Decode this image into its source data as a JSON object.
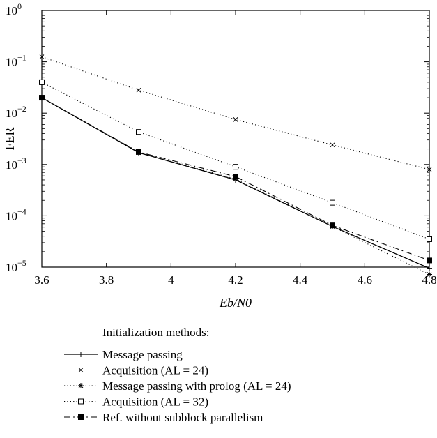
{
  "chart_data": {
    "type": "line",
    "xlabel": "Eb/N0",
    "ylabel": "FER",
    "xlim": [
      3.6,
      4.8
    ],
    "ylim": [
      1e-05,
      1
    ],
    "yscale": "log",
    "x_ticks": [
      "3.6",
      "3.8",
      "4",
      "4.2",
      "4.4",
      "4.6",
      "4.8"
    ],
    "y_ticks": [
      {
        "base": "10",
        "exp": "0"
      },
      {
        "base": "10",
        "exp": "−1"
      },
      {
        "base": "10",
        "exp": "−2"
      },
      {
        "base": "10",
        "exp": "−3"
      },
      {
        "base": "10",
        "exp": "−4"
      },
      {
        "base": "10",
        "exp": "−5"
      }
    ],
    "grid": false,
    "legend_title": "Initialization methods:",
    "legend_position": "below",
    "x": [
      3.6,
      3.9,
      4.2,
      4.5,
      4.8
    ],
    "series": [
      {
        "name": "Message passing",
        "line": "solid",
        "marker": "plus",
        "values": [
          0.02,
          0.0017,
          0.0005,
          6.2e-05,
          9.5e-06
        ]
      },
      {
        "name": "Acquisition (AL = 24)",
        "line": "dotted",
        "marker": "x",
        "values": [
          0.125,
          0.028,
          0.0075,
          0.0024,
          0.0008
        ]
      },
      {
        "name": "Message passing with prolog (AL = 24)",
        "line": "dotted",
        "marker": "star",
        "values": [
          0.02,
          0.0017,
          0.00052,
          6.2e-05,
          7.2e-06
        ]
      },
      {
        "name": "Acquisition (AL = 32)",
        "line": "dotted",
        "marker": "square-open",
        "values": [
          0.04,
          0.0043,
          0.0009,
          0.00018,
          3.5e-05
        ]
      },
      {
        "name": "Ref. without subblock parallelism",
        "line": "dashdot",
        "marker": "square-filled",
        "values": [
          0.02,
          0.00175,
          0.00058,
          6.5e-05,
          1.35e-05
        ]
      }
    ]
  }
}
